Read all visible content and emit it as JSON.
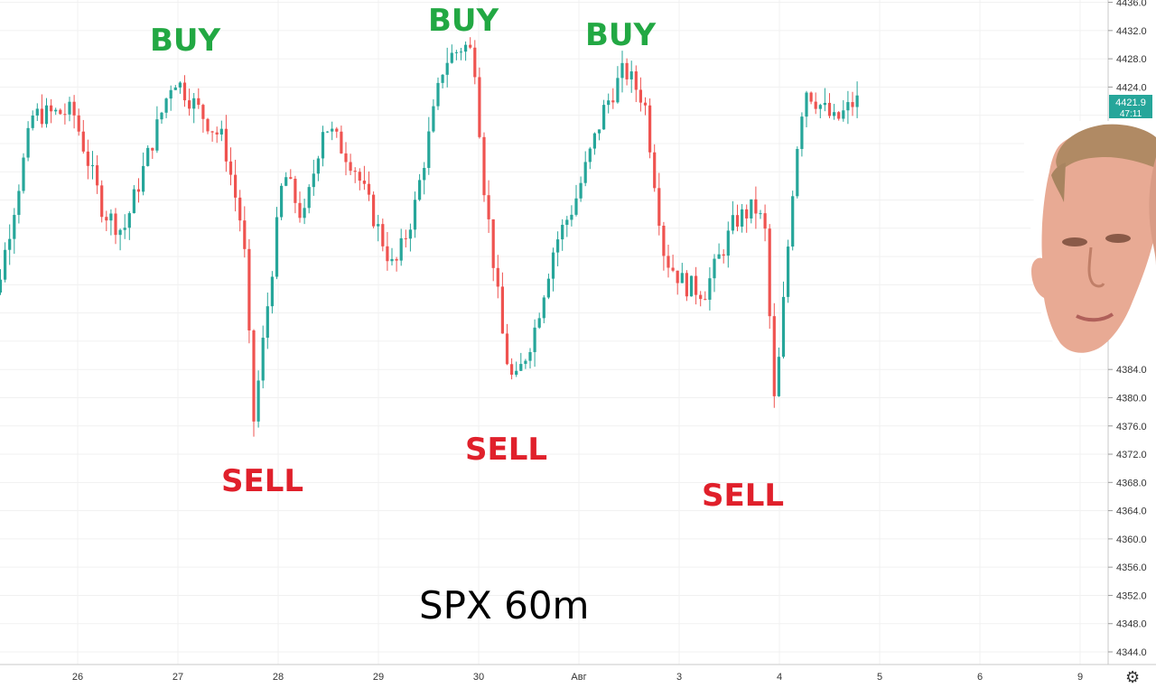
{
  "chart_data": {
    "type": "candlestick",
    "title": "SPX 60m",
    "y_ticks": [
      4436.0,
      4432.0,
      4428.0,
      4424.0,
      4384.0,
      4380.0,
      4376.0,
      4372.0,
      4368.0,
      4364.0,
      4360.0,
      4356.0,
      4352.0,
      4348.0,
      4344.0
    ],
    "x_ticks": [
      "26",
      "27",
      "28",
      "29",
      "30",
      "Авг",
      "3",
      "4",
      "5",
      "6",
      "9"
    ],
    "ylim": [
      4342.0,
      4437.0
    ],
    "last_price": "4421.9",
    "countdown": "47:11",
    "up_color": "#26a69a",
    "down_color": "#ef5350",
    "annotations": [
      {
        "text": "BUY",
        "type": "buy"
      },
      {
        "text": "BUY",
        "type": "buy"
      },
      {
        "text": "BUY",
        "type": "buy"
      },
      {
        "text": "SELL",
        "type": "sell"
      },
      {
        "text": "SELL",
        "type": "sell"
      },
      {
        "text": "SELL",
        "type": "sell"
      }
    ],
    "key_points": [
      {
        "x": "25",
        "y": 4378.5
      },
      {
        "x": "25.6",
        "y": 4420.0
      },
      {
        "x": "26",
        "y": 4420.5
      },
      {
        "x": "26.3",
        "y": 4406.5
      },
      {
        "x": "26.5",
        "y": 4403.5
      },
      {
        "x": "27",
        "y": 4425.5
      },
      {
        "x": "27.4",
        "y": 4418.0
      },
      {
        "x": "27.5",
        "y": 4416.5
      },
      {
        "x": "27.7",
        "y": 4403.0
      },
      {
        "x": "27.8",
        "y": 4376.5
      },
      {
        "x": "28.1",
        "y": 4412.0
      },
      {
        "x": "28.3",
        "y": 4405.0
      },
      {
        "x": "28.5",
        "y": 4419.0
      },
      {
        "x": "28.8",
        "y": 4413.0
      },
      {
        "x": "29.2",
        "y": 4398.0
      },
      {
        "x": "29.4",
        "y": 4406.5
      },
      {
        "x": "29.7",
        "y": 4427.5
      },
      {
        "x": "29.9",
        "y": 4430.0
      },
      {
        "x": "30",
        "y": 4428.5
      },
      {
        "x": "30.1",
        "y": 4410.0
      },
      {
        "x": "30.3",
        "y": 4387.0
      },
      {
        "x": "30.4",
        "y": 4381.5
      },
      {
        "x": "30.6",
        "y": 4389.5
      },
      {
        "x": "30.8",
        "y": 4401.5
      },
      {
        "x": "31",
        "y": 4407.5
      },
      {
        "x": "31.3",
        "y": 4421.0
      },
      {
        "x": "31.5",
        "y": 4426.5
      },
      {
        "x": "31.7",
        "y": 4422.0
      },
      {
        "x": "31.9",
        "y": 4400.0
      },
      {
        "x": "32.1",
        "y": 4396.0
      },
      {
        "x": "32.3",
        "y": 4395.0
      },
      {
        "x": "32.6",
        "y": 4405.0
      },
      {
        "x": "32.8",
        "y": 4407.0
      },
      {
        "x": "32.9",
        "y": 4404.0
      },
      {
        "x": "33",
        "y": 4378.0
      },
      {
        "x": "33.2",
        "y": 4413.5
      },
      {
        "x": "33.3",
        "y": 4424.0
      },
      {
        "x": "33.6",
        "y": 4419.0
      },
      {
        "x": "33.8",
        "y": 4422.0
      }
    ]
  },
  "face_image": {
    "alt": "face"
  },
  "settings_icon": "gear-icon"
}
